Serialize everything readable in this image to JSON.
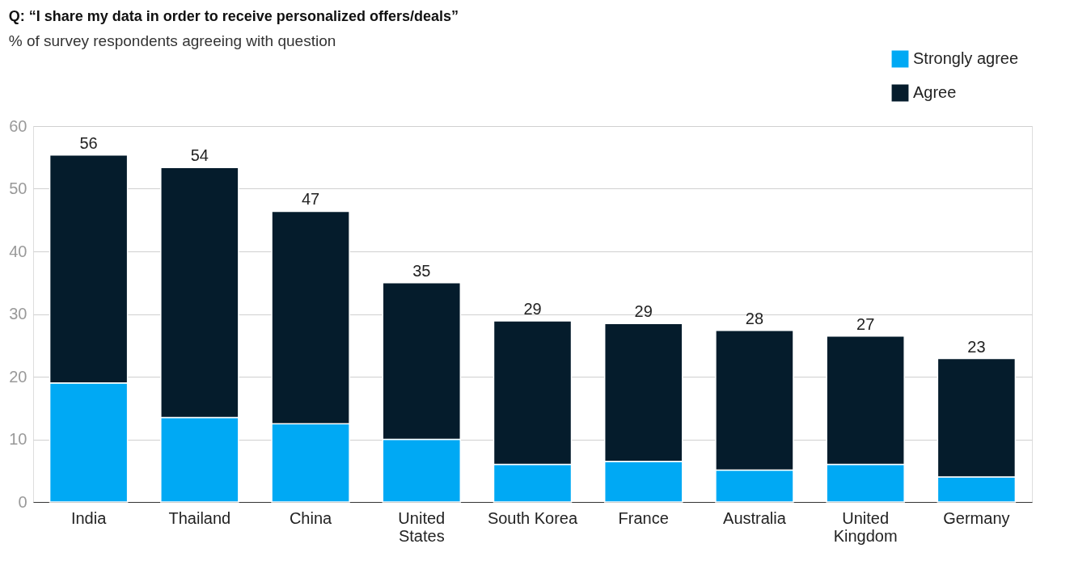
{
  "chart_data": {
    "type": "bar",
    "title": "Q: “I share my data in order to receive personalized offers/deals”",
    "subtitle": "% of survey respondents agreeing with question",
    "categories": [
      "India",
      "Thailand",
      "China",
      "United States",
      "South Korea",
      "France",
      "Australia",
      "United Kingdom",
      "Germany"
    ],
    "stacked": true,
    "series": [
      {
        "name": "Strongly agree",
        "color": "#00a9f4",
        "values": [
          19.0,
          13.5,
          12.5,
          10.0,
          6.0,
          6.5,
          5.1,
          6.0,
          4.0
        ]
      },
      {
        "name": "Agree",
        "color": "#051c2c",
        "values": [
          36.4,
          39.9,
          33.9,
          25.0,
          22.9,
          22.0,
          22.3,
          20.5,
          18.9
        ]
      }
    ],
    "totals": [
      "56",
      "54",
      "47",
      "35",
      "29",
      "29",
      "28",
      "27",
      "23"
    ],
    "ylim": [
      0,
      60
    ],
    "yticks": [
      0,
      10,
      20,
      30,
      40,
      50,
      60
    ],
    "grid": "y",
    "legend": "top right"
  }
}
